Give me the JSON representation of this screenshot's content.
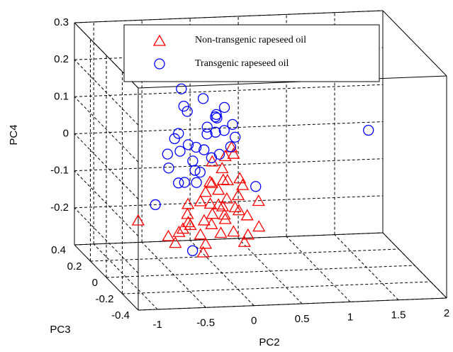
{
  "chart_data": {
    "type": "scatter3d",
    "xlabel": "PC2",
    "ylabel": "PC3",
    "zlabel": "PC4",
    "xlim": [
      -1.2,
      2
    ],
    "ylim": [
      -0.4,
      0.4
    ],
    "zlim": [
      -0.3,
      0.3
    ],
    "xticks": [
      -1,
      -0.5,
      0,
      0.5,
      1,
      1.5,
      2
    ],
    "yticks": [
      -0.4,
      -0.2,
      0,
      0.2,
      0.4
    ],
    "zticks": [
      -0.2,
      -0.1,
      0,
      0.1,
      0.2,
      0.3
    ],
    "grid": true,
    "legend": "top",
    "series": [
      {
        "name": "Non-transgenic rapeseed oil",
        "color": "#ff0000",
        "marker": "triangle",
        "x": [
          -0.87,
          -0.54,
          -0.43,
          -0.35,
          -0.32,
          -0.24,
          -0.17,
          -0.1,
          -0.02,
          0.01,
          0.05,
          0.09,
          0.12,
          -0.06,
          -0.13,
          -0.02,
          0.05,
          0.12,
          0.2,
          0.27,
          0.35,
          0.38,
          0.23,
          0.16,
          0.04,
          -0.1,
          -0.21,
          -0.32,
          -0.43,
          -0.5,
          -0.17,
          -0.17,
          -0.02,
          0.05,
          0.12,
          0.2,
          -0.1,
          0.05,
          -0.24,
          0.27,
          -0.02,
          -0.13,
          0.09,
          -0.35,
          0.16
        ],
        "y": [
          0,
          0.02,
          -0.03,
          0.01,
          0.04,
          -0.02,
          0,
          0.03,
          -0.04,
          0.01,
          0.02,
          -0.01,
          0,
          0.05,
          -0.03,
          0.02,
          0,
          -0.02,
          0.03,
          0.01,
          -0.04,
          0,
          0.02,
          -0.01,
          0.04,
          0,
          -0.03,
          0.01,
          0.02,
          -0.02,
          0,
          0.03,
          -0.01,
          0.02,
          0,
          -0.04,
          0.01,
          0.03,
          -0.02,
          0,
          0.02,
          -0.01,
          0.04,
          0,
          -0.03
        ],
        "z": [
          -0.15,
          -0.2,
          -0.17,
          -0.14,
          -0.12,
          -0.1,
          -0.08,
          -0.06,
          -0.04,
          -0.02,
          0.01,
          0.04,
          0.02,
          -0.01,
          -0.05,
          -0.08,
          -0.1,
          -0.12,
          -0.14,
          -0.15,
          -0.17,
          -0.11,
          -0.07,
          -0.09,
          -0.13,
          -0.14,
          -0.15,
          -0.17,
          -0.19,
          -0.21,
          -0.22,
          -0.25,
          -0.19,
          -0.16,
          -0.19,
          -0.21,
          -0.17,
          -0.15,
          -0.19,
          -0.2,
          -0.12,
          -0.11,
          -0.06,
          -0.16,
          -0.04
        ]
      },
      {
        "name": "Transgenic rapeseed oil",
        "color": "#0000ff",
        "marker": "circle",
        "x": [
          -0.38,
          -0.22,
          -0.38,
          -0.36,
          -0.1,
          0.05,
          -0.06,
          -0.17,
          -0.02,
          0.11,
          -0.1,
          0.04,
          -0.13,
          -0.5,
          -0.41,
          -0.35,
          -0.46,
          -0.26,
          -0.17,
          -0.06,
          0.09,
          -0.54,
          -0.32,
          -0.1,
          -0.52,
          -0.43,
          -0.28,
          -0.21,
          -0.46,
          -0.24,
          0.12,
          0.35,
          -0.65,
          -0.33,
          1.52
        ],
        "y": [
          0.05,
          -0.03,
          0.02,
          0,
          -0.05,
          0.03,
          0.01,
          -0.02,
          0.04,
          0,
          -0.04,
          0.02,
          0.03,
          -0.01,
          0.05,
          0,
          -0.03,
          0.01,
          0.02,
          -0.04,
          0,
          0.03,
          -0.02,
          0.01,
          0.04,
          -0.05,
          0,
          0.02,
          -0.01,
          0.03,
          -0.02,
          0,
          0.05,
          -0.03,
          0
        ],
        "z": [
          0.19,
          0.18,
          0.15,
          0.14,
          0.14,
          0.14,
          0.12,
          0.1,
          0.11,
          0.1,
          0.09,
          0.08,
          0.07,
          0.07,
          0.07,
          0.05,
          0.04,
          0.04,
          0.03,
          0.03,
          0.04,
          0.02,
          0.01,
          0.01,
          -0.02,
          -0.04,
          -0.02,
          -0.03,
          -0.05,
          -0.06,
          0.07,
          -0.07,
          -0.12,
          -0.23,
          0.07
        ]
      }
    ]
  }
}
